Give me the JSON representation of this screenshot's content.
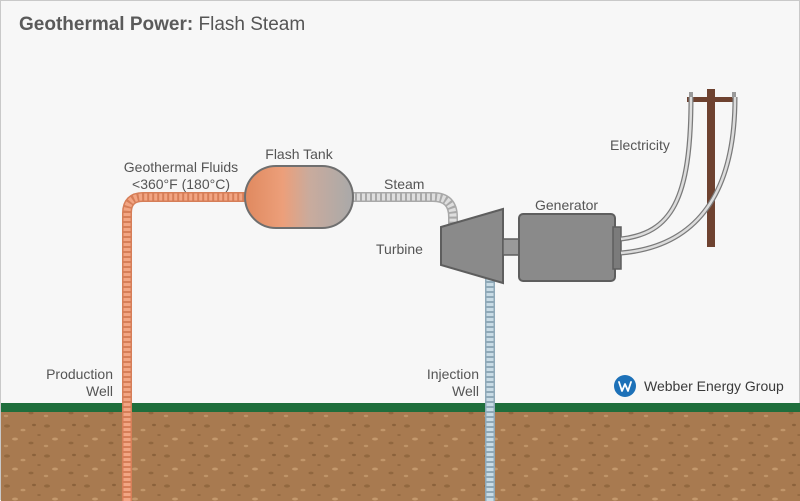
{
  "title": {
    "bold": "Geothermal Power:",
    "rest": "Flash Steam"
  },
  "labels": {
    "production_well": [
      "Production",
      "Well"
    ],
    "geothermal_fluids": [
      "Geothermal Fluids",
      "<360°F (180°C)"
    ],
    "flash_tank": "Flash Tank",
    "steam": "Steam",
    "turbine": "Turbine",
    "generator": "Generator",
    "electricity": "Electricity",
    "injection_well": [
      "Injection",
      "Well"
    ]
  },
  "brand": {
    "name": "Webber Energy Group",
    "icon": "w-logo-icon"
  },
  "colors": {
    "hot_pipe": "#ef9a76",
    "steam_pipe": "#c9c9c9",
    "cold_pipe": "#b8cdd8",
    "machine": "#8a8a8a",
    "ground": "#a87a50",
    "grass": "#1f6e3c",
    "pole": "#6e4230",
    "brand_blue": "#1d71b8"
  }
}
